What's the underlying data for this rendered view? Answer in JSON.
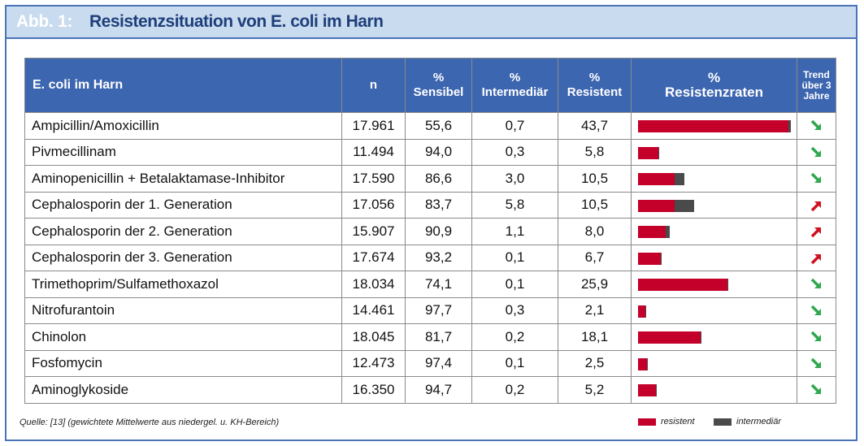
{
  "title": {
    "prefix": "Abb. 1:",
    "text": "Resistenzsituation von E. coli im Harn"
  },
  "colors": {
    "resistant": "#c4002a",
    "intermediate": "#4a4a4a",
    "trend_down": "#2fa84f",
    "trend_up": "#d0101e",
    "header": "#3d66b0"
  },
  "table": {
    "headers": {
      "name": "E. coli im Harn",
      "n": "n",
      "sensibel_1": "%",
      "sensibel_2": "Sensibel",
      "intermediaer_1": "%",
      "intermediaer_2": "Intermediär",
      "resistent_1": "%",
      "resistent_2": "Resistent",
      "raten_1": "%",
      "raten_2": "Resistenzraten",
      "trend_1": "Trend",
      "trend_2": "über 3",
      "trend_3": "Jahre"
    },
    "rows": [
      {
        "name": "Ampicillin/Amoxicillin",
        "n": "17.961",
        "sensibel": "55,6",
        "intermediaer": "0,7",
        "resistent": "43,7",
        "res_value": 43.7,
        "int_value": 0.7,
        "trend": "down"
      },
      {
        "name": "Pivmecillinam",
        "n": "11.494",
        "sensibel": "94,0",
        "intermediaer": "0,3",
        "resistent": "5,8",
        "res_value": 5.8,
        "int_value": 0.3,
        "trend": "down"
      },
      {
        "name": "Aminopenicillin + Betalaktamase-Inhibitor",
        "n": "17.590",
        "sensibel": "86,6",
        "intermediaer": "3,0",
        "resistent": "10,5",
        "res_value": 10.5,
        "int_value": 3.0,
        "trend": "down"
      },
      {
        "name": "Cephalosporin der 1. Generation",
        "n": "17.056",
        "sensibel": "83,7",
        "intermediaer": "5,8",
        "resistent": "10,5",
        "res_value": 10.5,
        "int_value": 5.8,
        "trend": "up"
      },
      {
        "name": "Cephalosporin der 2. Generation",
        "n": "15.907",
        "sensibel": "90,9",
        "intermediaer": "1,1",
        "resistent": "8,0",
        "res_value": 8.0,
        "int_value": 1.1,
        "trend": "up"
      },
      {
        "name": "Cephalosporin der 3. Generation",
        "n": "17.674",
        "sensibel": "93,2",
        "intermediaer": "0,1",
        "resistent": "6,7",
        "res_value": 6.7,
        "int_value": 0.1,
        "trend": "up"
      },
      {
        "name": "Trimethoprim/Sulfamethoxazol",
        "n": "18.034",
        "sensibel": "74,1",
        "intermediaer": "0,1",
        "resistent": "25,9",
        "res_value": 25.9,
        "int_value": 0.1,
        "trend": "down"
      },
      {
        "name": "Nitrofurantoin",
        "n": "14.461",
        "sensibel": "97,7",
        "intermediaer": "0,3",
        "resistent": "2,1",
        "res_value": 2.1,
        "int_value": 0.3,
        "trend": "down"
      },
      {
        "name": "Chinolon",
        "n": "18.045",
        "sensibel": "81,7",
        "intermediaer": "0,2",
        "resistent": "18,1",
        "res_value": 18.1,
        "int_value": 0.2,
        "trend": "down"
      },
      {
        "name": "Fosfomycin",
        "n": "12.473",
        "sensibel": "97,4",
        "intermediaer": "0,1",
        "resistent": "2,5",
        "res_value": 2.5,
        "int_value": 0.1,
        "trend": "down"
      },
      {
        "name": "Aminoglykoside",
        "n": "16.350",
        "sensibel": "94,7",
        "intermediaer": "0,2",
        "resistent": "5,2",
        "res_value": 5.2,
        "int_value": 0.2,
        "trend": "down"
      }
    ]
  },
  "footer": {
    "source": "Quelle: [13] (gewichtete Mittelwerte aus niedergel. u. KH-Bereich)",
    "legend_resistant": "resistent",
    "legend_intermediate": "intermediär"
  }
}
